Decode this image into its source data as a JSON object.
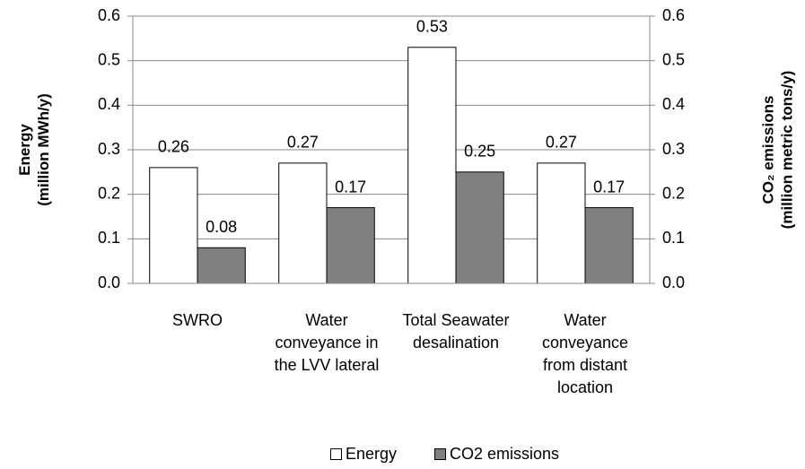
{
  "chart_data": {
    "type": "bar",
    "ylabel": [
      "Energy",
      "(million MWh/y)"
    ],
    "y2label": [
      "CO₂ emissions",
      "(million metric tons/y)"
    ],
    "categories": [
      "SWRO",
      "Water conveyance in the LVV lateral",
      "Total Seawater desalination",
      "Water conveyance from distant location"
    ],
    "series": [
      {
        "name": "Energy",
        "color": "#ffffff",
        "values": [
          0.26,
          0.27,
          0.53,
          0.27
        ]
      },
      {
        "name": "CO2 emissions",
        "color": "#808080",
        "values": [
          0.08,
          0.17,
          0.25,
          0.17
        ],
        "axis": "y2"
      }
    ],
    "ylim": [
      0,
      0.6
    ],
    "yticks": [
      {
        "value": 0,
        "label": "0.0"
      },
      0.1,
      0.2,
      0.3,
      0.4,
      0.5,
      0.6
    ],
    "y2lim": [
      0,
      0.6
    ],
    "y2ticks": [
      {
        "value": 0,
        "label": "0.0"
      },
      0.1,
      0.2,
      0.3,
      0.4,
      0.5,
      0.6
    ],
    "grid": true,
    "legend": "bottom"
  }
}
